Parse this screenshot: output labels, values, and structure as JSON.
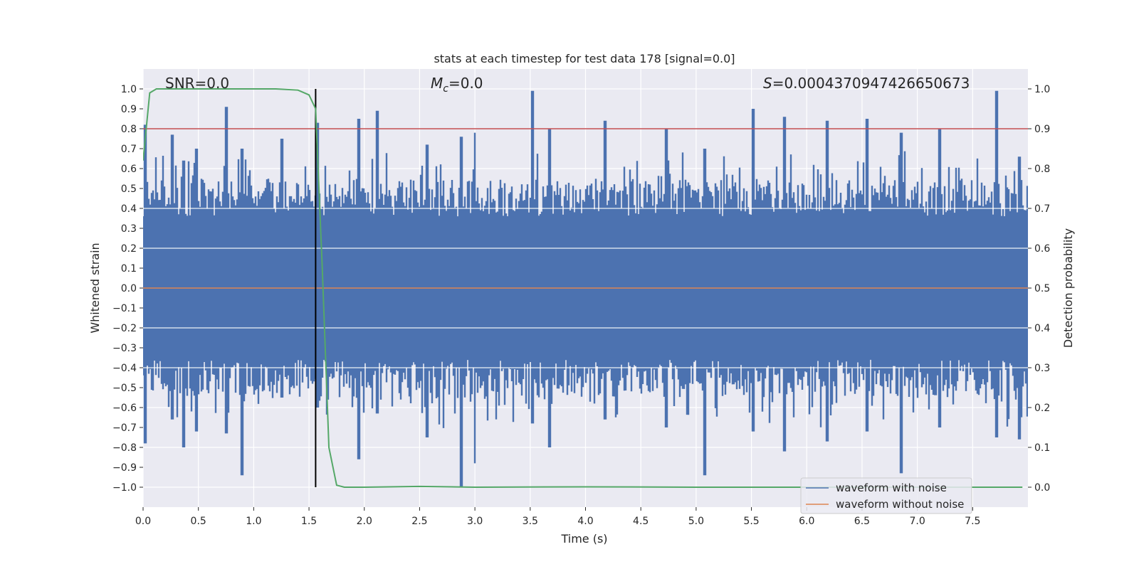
{
  "chart_data": {
    "type": "line",
    "title": "stats at each timestep for test data 178 [signal=0.0]",
    "xlabel": "Time (s)",
    "ylabel": "Whitened strain",
    "y2label": "Detection probability",
    "xlim": [
      0.0,
      8.0
    ],
    "ylim": [
      -1.1,
      1.1
    ],
    "y2lim": [
      -0.05,
      1.05
    ],
    "xticks": [
      0.0,
      0.5,
      1.0,
      1.5,
      2.0,
      2.5,
      3.0,
      3.5,
      4.0,
      4.5,
      5.0,
      5.5,
      6.0,
      6.5,
      7.0,
      7.5
    ],
    "xtick_labels": [
      "0.0",
      "0.5",
      "1.0",
      "1.5",
      "2.0",
      "2.5",
      "3.0",
      "3.5",
      "4.0",
      "4.5",
      "5.0",
      "5.5",
      "6.0",
      "6.5",
      "7.0",
      "7.5"
    ],
    "yticks": [
      1.0,
      0.9,
      0.8,
      0.7,
      0.6,
      0.5,
      0.4,
      0.3,
      0.2,
      0.1,
      0.0,
      -0.1,
      -0.2,
      -0.3,
      -0.4,
      -0.5,
      -0.6,
      -0.7,
      -0.8,
      -0.9,
      -1.0
    ],
    "ytick_labels": [
      "1.0",
      "0.9",
      "0.8",
      "0.7",
      "0.6",
      "0.5",
      "0.4",
      "0.3",
      "0.2",
      "0.1",
      "0.0",
      "−0.1",
      "−0.2",
      "−0.3",
      "−0.4",
      "−0.5",
      "−0.6",
      "−0.7",
      "−0.8",
      "−0.9",
      "−1.0"
    ],
    "y2ticks": [
      1.0,
      0.9,
      0.8,
      0.7,
      0.6,
      0.5,
      0.4,
      0.3,
      0.2,
      0.1,
      0.0
    ],
    "y2tick_labels": [
      "1.0",
      "0.9",
      "0.8",
      "0.7",
      "0.6",
      "0.5",
      "0.4",
      "0.3",
      "0.2",
      "0.1",
      "0.0"
    ],
    "annotations": {
      "snr": "SNR=0.0",
      "mc_symbol": "M",
      "mc_sub": "c",
      "mc_value": "=0.0",
      "s_symbol": "S",
      "s_value": "=0.0004370947426650673"
    },
    "threshold_line": {
      "axis": "y2",
      "value": 0.9,
      "color": "#c44e52"
    },
    "event_line": {
      "x": 1.56,
      "color": "#000000"
    },
    "noise_envelope": {
      "typical_max": 0.55,
      "typical_min": -0.55,
      "spikes": [
        {
          "x": 0.02,
          "max": 0.82,
          "min": -0.78
        },
        {
          "x": 0.26,
          "max": 0.77,
          "min": -0.66
        },
        {
          "x": 0.37,
          "max": 0.64,
          "min": -0.8
        },
        {
          "x": 0.48,
          "max": 0.7,
          "min": -0.72
        },
        {
          "x": 0.75,
          "max": 0.91,
          "min": -0.73
        },
        {
          "x": 0.89,
          "max": 0.7,
          "min": -0.94
        },
        {
          "x": 1.25,
          "max": 0.75,
          "min": -0.55
        },
        {
          "x": 1.58,
          "max": 0.83,
          "min": -0.6
        },
        {
          "x": 1.95,
          "max": 0.85,
          "min": -0.86
        },
        {
          "x": 2.12,
          "max": 0.89,
          "min": -0.63
        },
        {
          "x": 2.57,
          "max": 0.72,
          "min": -0.75
        },
        {
          "x": 2.88,
          "max": 0.76,
          "min": -1.0
        },
        {
          "x": 3.0,
          "max": 0.78,
          "min": -0.88
        },
        {
          "x": 3.52,
          "max": 0.99,
          "min": -0.68
        },
        {
          "x": 3.68,
          "max": 0.8,
          "min": -0.8
        },
        {
          "x": 4.18,
          "max": 0.84,
          "min": -0.66
        },
        {
          "x": 4.73,
          "max": 0.8,
          "min": -0.7
        },
        {
          "x": 5.08,
          "max": 0.7,
          "min": -0.94
        },
        {
          "x": 5.52,
          "max": 0.9,
          "min": -0.72
        },
        {
          "x": 5.8,
          "max": 0.86,
          "min": -0.82
        },
        {
          "x": 6.18,
          "max": 0.84,
          "min": -0.77
        },
        {
          "x": 6.55,
          "max": 0.85,
          "min": -0.72
        },
        {
          "x": 6.85,
          "max": 0.78,
          "min": -0.93
        },
        {
          "x": 7.2,
          "max": 0.8,
          "min": -0.7
        },
        {
          "x": 7.72,
          "max": 0.99,
          "min": -0.75
        },
        {
          "x": 7.92,
          "max": 0.66,
          "min": -0.76
        }
      ]
    },
    "series": [
      {
        "name": "waveform with noise",
        "axis": "y",
        "color": "#4c72b0",
        "render": "noise-envelope"
      },
      {
        "name": "waveform without noise",
        "axis": "y",
        "color": "#dd8452",
        "x": [
          0.0,
          8.0
        ],
        "values": [
          0.0,
          0.0
        ]
      },
      {
        "name": "detection probability",
        "axis": "y2",
        "color": "#55a868",
        "x": [
          0.0,
          0.06,
          0.12,
          0.3,
          0.6,
          0.9,
          1.2,
          1.4,
          1.5,
          1.56,
          1.62,
          1.68,
          1.75,
          1.82,
          2.0,
          2.5,
          3.0,
          4.0,
          5.0,
          6.0,
          7.0,
          7.95
        ],
        "values": [
          0.82,
          0.99,
          1.0,
          1.0,
          1.0,
          1.0,
          1.0,
          0.997,
          0.985,
          0.95,
          0.55,
          0.1,
          0.005,
          0.0,
          0.0,
          0.002,
          0.0,
          0.001,
          0.0,
          0.0,
          0.0,
          0.0
        ]
      }
    ],
    "legend": {
      "position": "lower-right",
      "entries": [
        {
          "label": "waveform with noise",
          "color": "#4c72b0"
        },
        {
          "label": "waveform without noise",
          "color": "#dd8452"
        }
      ]
    },
    "style": {
      "plot_bg": "#eaeaf2",
      "grid_color": "#ffffff",
      "noise_color": "#4c72b0"
    }
  }
}
